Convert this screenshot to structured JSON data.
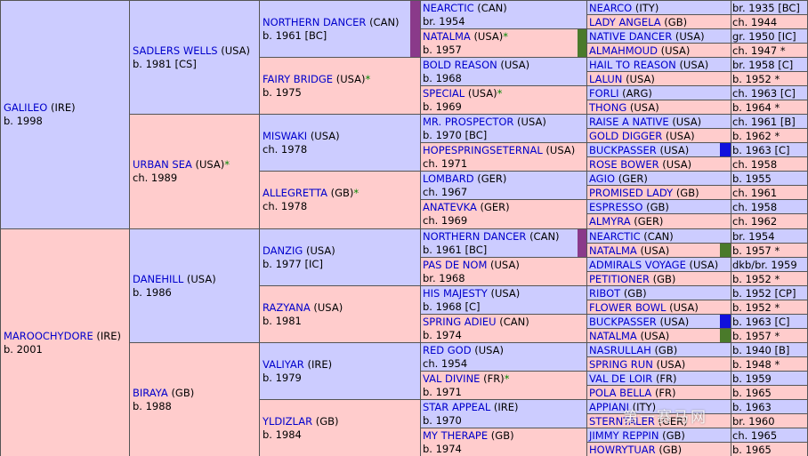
{
  "watermark": "第一赛马网",
  "pedigree": {
    "g1": [
      {
        "name": "GALILEO",
        "country": "(IRE)",
        "star": "",
        "info": "b. 1998"
      },
      {
        "name": "MAROOCHYDORE",
        "country": "(IRE)",
        "star": "",
        "info": "b. 2001"
      }
    ],
    "g2": [
      {
        "name": "SADLERS WELLS",
        "country": "(USA)",
        "star": "",
        "info": "b. 1981 [CS]"
      },
      {
        "name": "URBAN SEA",
        "country": "(USA)",
        "star": "*",
        "info": "ch. 1989"
      },
      {
        "name": "DANEHILL",
        "country": "(USA)",
        "star": "",
        "info": "b. 1986"
      },
      {
        "name": "BIRAYA",
        "country": "(GB)",
        "star": "",
        "info": "b. 1988"
      }
    ],
    "g3": [
      {
        "name": "NORTHERN DANCER",
        "country": "(CAN)",
        "star": "",
        "info": "b. 1961 [BC]"
      },
      {
        "name": "FAIRY BRIDGE",
        "country": "(USA)",
        "star": "*",
        "info": "b. 1975"
      },
      {
        "name": "MISWAKI",
        "country": "(USA)",
        "star": "",
        "info": "ch. 1978"
      },
      {
        "name": "ALLEGRETTA",
        "country": "(GB)",
        "star": "*",
        "info": "ch. 1978"
      },
      {
        "name": "DANZIG",
        "country": "(USA)",
        "star": "",
        "info": "b. 1977 [IC]"
      },
      {
        "name": "RAZYANA",
        "country": "(USA)",
        "star": "",
        "info": "b. 1981"
      },
      {
        "name": "VALIYAR",
        "country": "(IRE)",
        "star": "",
        "info": "b. 1979"
      },
      {
        "name": "YLDIZLAR",
        "country": "(GB)",
        "star": "",
        "info": "b. 1984"
      }
    ],
    "g4": [
      {
        "name": "NEARCTIC",
        "country": "(CAN)",
        "star": "",
        "info": "br. 1954"
      },
      {
        "name": "NATALMA",
        "country": "(USA)",
        "star": "*",
        "info": "b. 1957"
      },
      {
        "name": "BOLD REASON",
        "country": "(USA)",
        "star": "",
        "info": "b. 1968"
      },
      {
        "name": "SPECIAL",
        "country": "(USA)",
        "star": "*",
        "info": "b. 1969"
      },
      {
        "name": "MR. PROSPECTOR",
        "country": "(USA)",
        "star": "",
        "info": "b. 1970 [BC]"
      },
      {
        "name": "HOPESPRINGSETERNAL",
        "country": "(USA)",
        "star": "",
        "info": "ch. 1971"
      },
      {
        "name": "LOMBARD",
        "country": "(GER)",
        "star": "",
        "info": "ch. 1967"
      },
      {
        "name": "ANATEVKA",
        "country": "(GER)",
        "star": "",
        "info": "ch. 1969"
      },
      {
        "name": "NORTHERN DANCER",
        "country": "(CAN)",
        "star": "",
        "info": "b. 1961 [BC]"
      },
      {
        "name": "PAS DE NOM",
        "country": "(USA)",
        "star": "",
        "info": "br. 1968"
      },
      {
        "name": "HIS MAJESTY",
        "country": "(USA)",
        "star": "",
        "info": "b. 1968 [C]"
      },
      {
        "name": "SPRING ADIEU",
        "country": "(CAN)",
        "star": "",
        "info": "b. 1974"
      },
      {
        "name": "RED GOD",
        "country": "(USA)",
        "star": "",
        "info": "ch. 1954"
      },
      {
        "name": "VAL DIVINE",
        "country": "(FR)",
        "star": "*",
        "info": "b. 1971"
      },
      {
        "name": "STAR APPEAL",
        "country": "(IRE)",
        "star": "",
        "info": "b. 1970"
      },
      {
        "name": "MY THERAPE",
        "country": "(GB)",
        "star": "",
        "info": "b. 1974"
      }
    ],
    "g5": [
      {
        "name": "NEARCO",
        "country": "(ITY)",
        "star": "",
        "info": "br. 1935 [BC]"
      },
      {
        "name": "LADY ANGELA",
        "country": "(GB)",
        "star": "",
        "info": "ch. 1944"
      },
      {
        "name": "NATIVE DANCER",
        "country": "(USA)",
        "star": "",
        "info": "gr. 1950 [IC]"
      },
      {
        "name": "ALMAHMOUD",
        "country": "(USA)",
        "star": "",
        "info": "ch. 1947 *"
      },
      {
        "name": "HAIL TO REASON",
        "country": "(USA)",
        "star": "",
        "info": "br. 1958 [C]"
      },
      {
        "name": "LALUN",
        "country": "(USA)",
        "star": "",
        "info": "b. 1952 *"
      },
      {
        "name": "FORLI",
        "country": "(ARG)",
        "star": "",
        "info": "ch. 1963 [C]"
      },
      {
        "name": "THONG",
        "country": "(USA)",
        "star": "",
        "info": "b. 1964 *"
      },
      {
        "name": "RAISE A NATIVE",
        "country": "(USA)",
        "star": "",
        "info": "ch. 1961 [B]"
      },
      {
        "name": "GOLD DIGGER",
        "country": "(USA)",
        "star": "",
        "info": "b. 1962 *"
      },
      {
        "name": "BUCKPASSER",
        "country": "(USA)",
        "star": "",
        "info": "b. 1963 [C]"
      },
      {
        "name": "ROSE BOWER",
        "country": "(USA)",
        "star": "",
        "info": "ch. 1958"
      },
      {
        "name": "AGIO",
        "country": "(GER)",
        "star": "",
        "info": "b. 1955"
      },
      {
        "name": "PROMISED LADY",
        "country": "(GB)",
        "star": "",
        "info": "ch. 1961"
      },
      {
        "name": "ESPRESSO",
        "country": "(GB)",
        "star": "",
        "info": "ch. 1958"
      },
      {
        "name": "ALMYRA",
        "country": "(GER)",
        "star": "",
        "info": "ch. 1962"
      },
      {
        "name": "NEARCTIC",
        "country": "(CAN)",
        "star": "",
        "info": "br. 1954"
      },
      {
        "name": "NATALMA",
        "country": "(USA)",
        "star": "",
        "info": "b. 1957 *"
      },
      {
        "name": "ADMIRALS VOYAGE",
        "country": "(USA)",
        "star": "",
        "info": "dkb/br. 1959"
      },
      {
        "name": "PETITIONER",
        "country": "(GB)",
        "star": "",
        "info": "b. 1952 *"
      },
      {
        "name": "RIBOT",
        "country": "(GB)",
        "star": "",
        "info": "b. 1952 [CP]"
      },
      {
        "name": "FLOWER BOWL",
        "country": "(USA)",
        "star": "",
        "info": "b. 1952 *"
      },
      {
        "name": "BUCKPASSER",
        "country": "(USA)",
        "star": "",
        "info": "b. 1963 [C]"
      },
      {
        "name": "NATALMA",
        "country": "(USA)",
        "star": "",
        "info": "b. 1957 *"
      },
      {
        "name": "NASRULLAH",
        "country": "(GB)",
        "star": "",
        "info": "b. 1940 [B]"
      },
      {
        "name": "SPRING RUN",
        "country": "(USA)",
        "star": "",
        "info": "b. 1948 *"
      },
      {
        "name": "VAL DE LOIR",
        "country": "(FR)",
        "star": "",
        "info": "b. 1959"
      },
      {
        "name": "POLA BELLA",
        "country": "(FR)",
        "star": "",
        "info": "b. 1965"
      },
      {
        "name": "APPIANI",
        "country": "(ITY)",
        "star": "",
        "info": "b. 1963"
      },
      {
        "name": "STERNTALER",
        "country": "(GER)",
        "star": "",
        "info": "br. 1960"
      },
      {
        "name": "JIMMY REPPIN",
        "country": "(GB)",
        "star": "",
        "info": "ch. 1965"
      },
      {
        "name": "HOWRYTUAR",
        "country": "(GB)",
        "star": "",
        "info": "b. 1965"
      }
    ]
  }
}
